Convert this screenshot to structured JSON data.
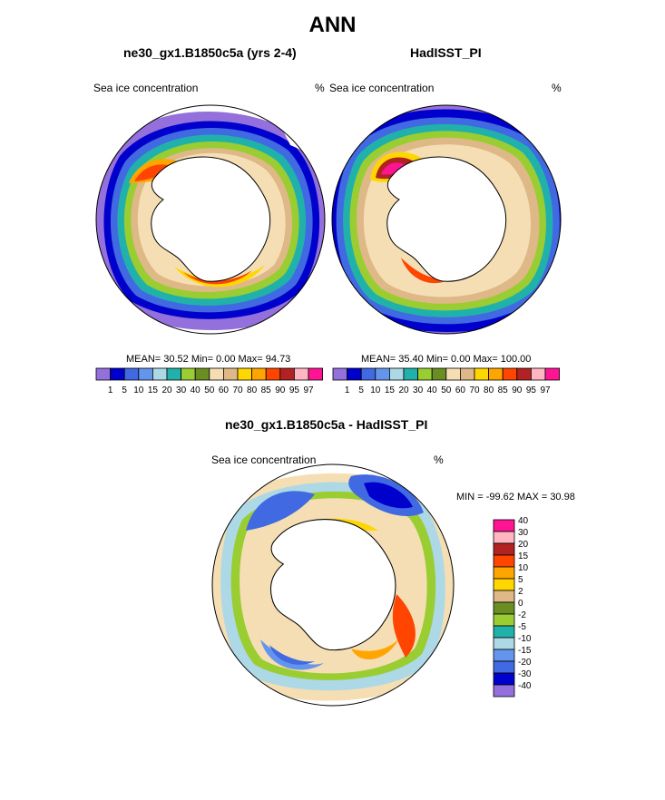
{
  "title": "ANN",
  "panels": [
    {
      "title": "ne30_gx1.B1850c5a (yrs 2-4)",
      "left_label": "Sea ice concentration",
      "right_label": "%",
      "stats_text": "MEAN=  30.52  Min=   0.00  Max=  94.73"
    },
    {
      "title": "HadISST_PI",
      "left_label": "Sea ice concentration",
      "right_label": "%",
      "stats_text": "MEAN=  35.40  Min=   0.00  Max= 100.00"
    }
  ],
  "diff_panel": {
    "title": "ne30_gx1.B1850c5a - HadISST_PI",
    "left_label": "Sea ice concentration",
    "right_label": "%",
    "minmax_text": "MIN = -99.62 MAX =  30.98"
  },
  "colorbar_main": {
    "labels": [
      "1",
      "5",
      "10",
      "15",
      "20",
      "30",
      "40",
      "50",
      "60",
      "70",
      "80",
      "85",
      "90",
      "95",
      "97"
    ],
    "colors": [
      "#9370db",
      "#0000cd",
      "#4169e1",
      "#6495ed",
      "#add8e6",
      "#20b2aa",
      "#9acd32",
      "#6b8e23",
      "#f5deb3",
      "#deb887",
      "#ffd700",
      "#ffa500",
      "#ff4500",
      "#b22222",
      "#ffb6c1",
      "#ff1493"
    ]
  },
  "colorbar_diff": {
    "labels": [
      "40",
      "30",
      "20",
      "15",
      "10",
      "5",
      "2",
      "0",
      "-2",
      "-5",
      "-10",
      "-15",
      "-20",
      "-30",
      "-40"
    ],
    "colors": [
      "#ff1493",
      "#ffb6c1",
      "#b22222",
      "#ff4500",
      "#ffa500",
      "#ffd700",
      "#deb887",
      "#6b8e23",
      "#9acd32",
      "#20b2aa",
      "#add8e6",
      "#6495ed",
      "#4169e1",
      "#0000cd",
      "#9370db"
    ]
  }
}
